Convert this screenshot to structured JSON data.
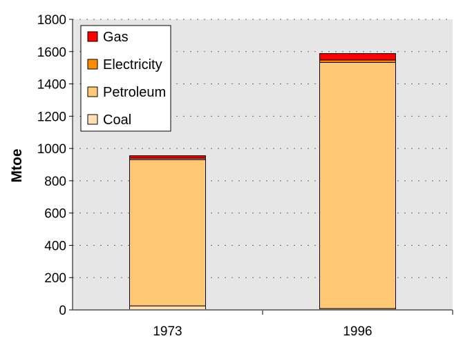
{
  "chart_data": {
    "type": "bar",
    "stacked": true,
    "title": "",
    "xlabel": "",
    "ylabel": "Mtoe",
    "ylim": [
      0,
      1800
    ],
    "yticks": [
      0,
      200,
      400,
      600,
      800,
      1000,
      1200,
      1400,
      1600,
      1800
    ],
    "categories": [
      "1973",
      "1996"
    ],
    "grid": true,
    "legend_position": "top-left",
    "series": [
      {
        "name": "Coal",
        "color": "#FFDEB3",
        "values": [
          25,
          8
        ]
      },
      {
        "name": "Petroleum",
        "color": "#FFC875",
        "values": [
          905,
          1525
        ]
      },
      {
        "name": "Electricity",
        "color": "#FF8C00",
        "values": [
          10,
          15
        ]
      },
      {
        "name": "Gas",
        "color": "#FF0000",
        "values": [
          15,
          40
        ]
      }
    ]
  }
}
